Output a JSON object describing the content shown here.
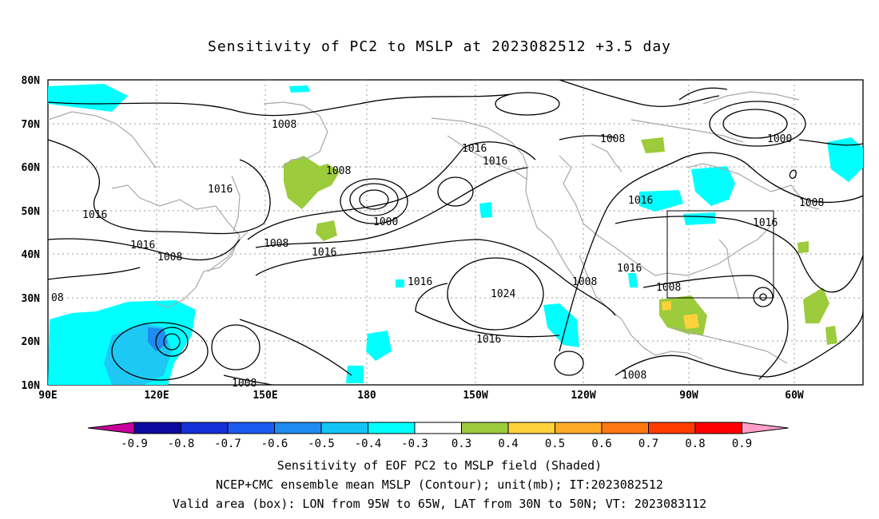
{
  "title": "Sensitivity of PC2 to MSLP at 2023082512 +3.5 day",
  "lat_labels": [
    "80N",
    "70N",
    "60N",
    "50N",
    "40N",
    "30N",
    "20N",
    "10N"
  ],
  "lon_labels": [
    "90E",
    "120E",
    "150E",
    "180",
    "150W",
    "120W",
    "90W",
    "60W"
  ],
  "contour_labels": [
    "1008",
    "1016",
    "1016",
    "1008",
    "1000",
    "1016",
    "1016",
    "1016",
    "1008",
    "1016",
    "1008",
    "1008",
    "1000",
    "1016",
    "1016",
    "1024",
    "1008",
    "1016",
    "1016",
    "1008",
    "1008",
    "08",
    "1008",
    "1008"
  ],
  "colorbar": {
    "labels": [
      "-0.9",
      "-0.8",
      "-0.7",
      "-0.6",
      "-0.5",
      "-0.4",
      "-0.3",
      "0.3",
      "0.4",
      "0.5",
      "0.6",
      "0.7",
      "0.8",
      "0.9"
    ],
    "colors": [
      "#c8009b",
      "#0a0aa0",
      "#1530d8",
      "#1c5af0",
      "#1e8cf0",
      "#14c3f5",
      "#00ffff",
      "#ffffff",
      "#9ccb3c",
      "#ffd23c",
      "#ffaa28",
      "#ff7814",
      "#ff3c00",
      "#ff0000",
      "#ff9ec8"
    ]
  },
  "valid_box": {
    "lon_from": "95W",
    "lon_to": "65W",
    "lat_from": "30N",
    "lat_to": "50N"
  },
  "captions": [
    "Sensitivity of EOF PC2 to MSLP field (Shaded)",
    "NCEP+CMC ensemble mean MSLP (Contour); unit(mb); IT:2023082512",
    "Valid area (box): LON from 95W to 65W, LAT from 30N to 50N; VT: 2023083112"
  ]
}
